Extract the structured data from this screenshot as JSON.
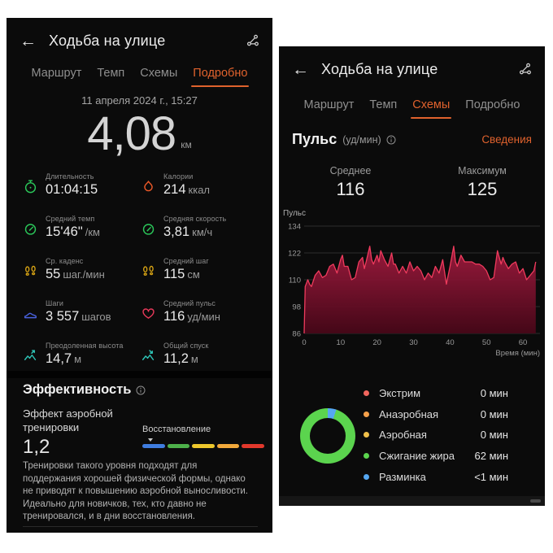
{
  "accent_color": "#e0622d",
  "left_phone": {
    "title": "Ходьба на улице",
    "tabs": [
      {
        "label": "Маршрут",
        "active": false
      },
      {
        "label": "Темп",
        "active": false
      },
      {
        "label": "Схемы",
        "active": false
      },
      {
        "label": "Подробно",
        "active": true
      }
    ],
    "date": "11 апреля 2024 г., 15:27",
    "distance": {
      "value": "4,08",
      "unit": "км"
    },
    "stats": [
      {
        "icon": "stopwatch-icon",
        "label": "Длительность",
        "value": "01:04:15",
        "unit": "",
        "color": "#2bc85a"
      },
      {
        "icon": "calories-icon",
        "label": "Калории",
        "value": "214",
        "unit": "ккал",
        "color": "#f05a28"
      },
      {
        "icon": "pace-gauge-icon",
        "label": "Средний темп",
        "value": "15'46\"",
        "unit": "/км",
        "color": "#2bc85a"
      },
      {
        "icon": "speed-gauge-icon",
        "label": "Средняя скорость",
        "value": "3,81",
        "unit": "км/ч",
        "color": "#2bc85a"
      },
      {
        "icon": "footprints-icon",
        "label": "Ср. каденс",
        "value": "55",
        "unit": "шаг./мин",
        "color": "#d9a514"
      },
      {
        "icon": "footprints-icon",
        "label": "Средний шаг",
        "value": "115",
        "unit": "см",
        "color": "#d9a514"
      },
      {
        "icon": "shoe-icon",
        "label": "Шаги",
        "value": "3 557",
        "unit": "шагов",
        "color": "#4a62e0"
      },
      {
        "icon": "heart-icon",
        "label": "Средний пульс",
        "value": "116",
        "unit": "уд/мин",
        "color": "#e8395a"
      },
      {
        "icon": "ascent-icon",
        "label": "Преодоленная высота",
        "value": "14,7",
        "unit": "м",
        "color": "#2ec4b6"
      },
      {
        "icon": "descent-icon",
        "label": "Общий спуск",
        "value": "11,2",
        "unit": "м",
        "color": "#2ec4b6"
      }
    ],
    "effectiveness": {
      "header": "Эффективность",
      "effect_label": "Эффект аэробной тренировки",
      "effect_value": "1,2",
      "scale_label": "Восстановление",
      "scale_colors": [
        "#3f7de0",
        "#4db04a",
        "#edc72c",
        "#f2a93b",
        "#e2382c"
      ],
      "description": "Тренировки такого уровня подходят для поддержания хорошей физической формы, однако не приводят к повышению аэробной выносливости. Идеально для новичков, тех, кто давно не тренировался, и в дни восстановления."
    }
  },
  "right_phone": {
    "title": "Ходьба на улице",
    "tabs": [
      {
        "label": "Маршрут",
        "active": false
      },
      {
        "label": "Темп",
        "active": false
      },
      {
        "label": "Схемы",
        "active": true
      },
      {
        "label": "Подробно",
        "active": false
      }
    ],
    "pulse": {
      "title": "Пульс",
      "unit": "(уд/мин)",
      "details_link": "Сведения",
      "avg_label": "Среднее",
      "avg_value": "116",
      "max_label": "Максимум",
      "max_value": "125"
    },
    "zones": [
      {
        "label": "Экстрим",
        "value": "0 мин",
        "color": "#f2665e"
      },
      {
        "label": "Анаэробная",
        "value": "0 мин",
        "color": "#f5a04a"
      },
      {
        "label": "Аэробная",
        "value": "0 мин",
        "color": "#f0c04a"
      },
      {
        "label": "Сжигание жира",
        "value": "62 мин",
        "color": "#5bd44e"
      },
      {
        "label": "Разминка",
        "value": "<1 мин",
        "color": "#55a7f2"
      }
    ]
  },
  "chart_data": [
    {
      "type": "area",
      "title": "Пульс",
      "xlabel": "Время (мин)",
      "xlim": [
        0,
        64
      ],
      "ylim": [
        86,
        134
      ],
      "yticks": [
        134,
        122,
        110,
        98,
        86
      ],
      "xticks": [
        0,
        10,
        20,
        30,
        40,
        50,
        60
      ],
      "grid": true,
      "line_color": "#ef3b5d",
      "fill_top": "#a51b40",
      "fill_bottom": "#470718",
      "x": [
        0,
        0.3,
        1,
        1.5,
        2,
        3,
        4,
        5,
        6,
        7,
        8,
        9,
        10,
        10.5,
        11,
        12,
        13,
        14,
        15,
        16,
        16.5,
        17,
        18,
        18.5,
        19,
        20,
        20.5,
        21,
        22,
        23,
        24,
        24.5,
        25,
        26,
        27,
        28,
        29,
        30,
        31,
        32,
        33,
        34,
        35,
        36,
        37,
        38,
        39,
        40,
        41,
        41.5,
        42,
        43,
        44,
        45,
        46,
        47,
        48,
        49,
        50,
        51,
        52,
        53,
        54,
        54.5,
        55,
        56,
        57,
        58,
        59,
        60,
        61,
        62,
        63,
        63.5
      ],
      "y": [
        86,
        107,
        110,
        108,
        107,
        112,
        114,
        111,
        112,
        116,
        117,
        113,
        119,
        121,
        116,
        116,
        110,
        111,
        118,
        120,
        115,
        118,
        125,
        119,
        117,
        121,
        118,
        123,
        119,
        116,
        122,
        117,
        117,
        113,
        116,
        113,
        118,
        114,
        116,
        114,
        110,
        113,
        111,
        116,
        113,
        119,
        108,
        116,
        125,
        118,
        116,
        121,
        118,
        118,
        118,
        117,
        117,
        116,
        114,
        110,
        111,
        123,
        117,
        120,
        118,
        115,
        117,
        118,
        113,
        115,
        110,
        112,
        114,
        118
      ]
    },
    {
      "type": "donut",
      "arcs": [
        {
          "label": "Разминка",
          "color": "#55a7f2",
          "from": 0,
          "to": 18
        },
        {
          "label": "Сжигание жира",
          "color": "#5bd44e",
          "from": 18,
          "to": 360
        }
      ],
      "values_min": {
        "Экстрим": 0,
        "Анаэробная": 0,
        "Аэробная": 0,
        "Сжигание жира": 62,
        "Разминка": 0.5
      }
    }
  ]
}
